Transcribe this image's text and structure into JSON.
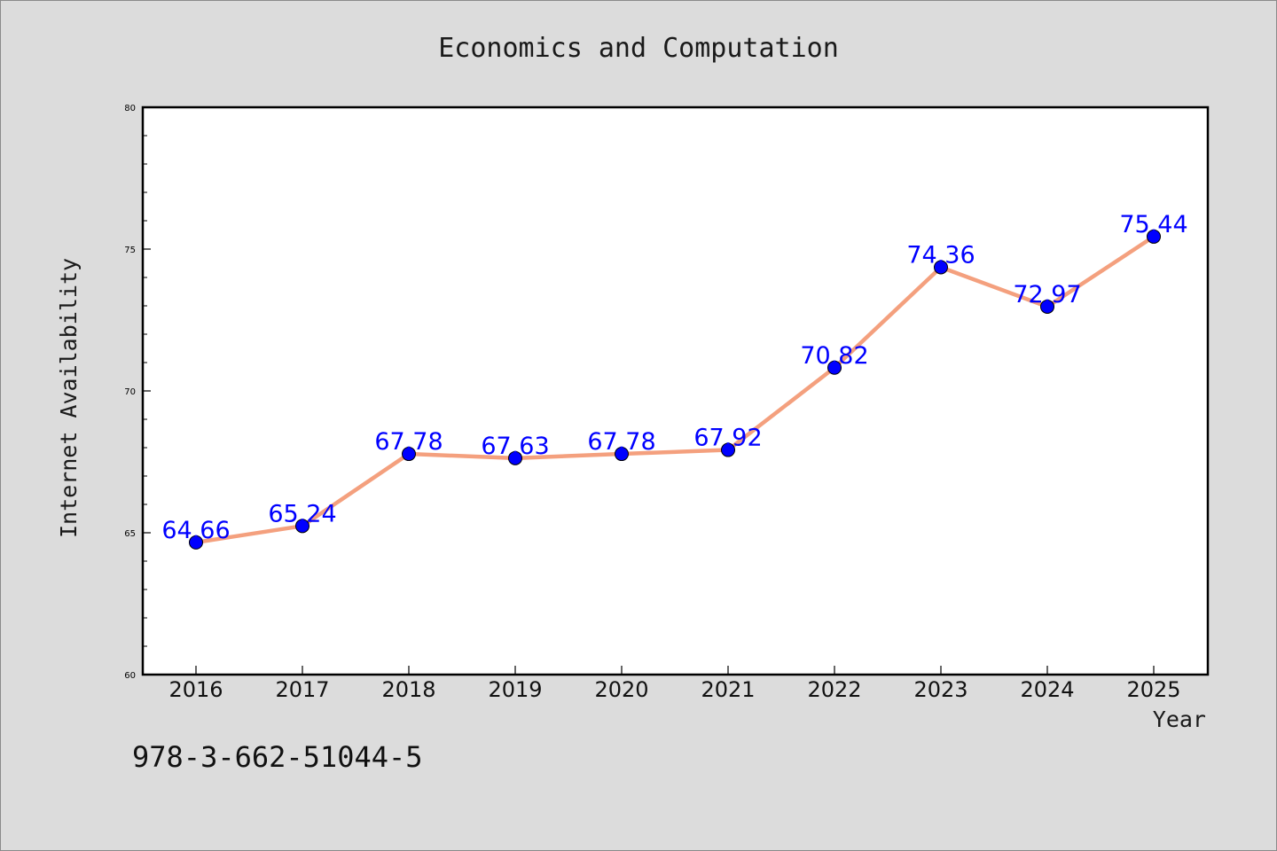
{
  "chart_data": {
    "type": "line",
    "title": "Economics and Computation",
    "xlabel": "Year",
    "ylabel": "Internet Availability",
    "x": [
      "2016",
      "2017",
      "2018",
      "2019",
      "2020",
      "2021",
      "2022",
      "2023",
      "2024",
      "2025"
    ],
    "series": [
      {
        "values": [
          64.66,
          65.24,
          67.78,
          67.63,
          67.78,
          67.92,
          70.82,
          74.36,
          72.97,
          75.44
        ],
        "line_color": "#f4a07e",
        "marker_color": "#0000ff"
      }
    ],
    "data_labels": [
      "64.66",
      "65.24",
      "67.78",
      "67.63",
      "67.78",
      "67.92",
      "70.82",
      "74.36",
      "72.97",
      "75.44"
    ],
    "yticks": [
      "60",
      "65",
      "70",
      "75",
      "80"
    ],
    "ylim": [
      60,
      80
    ],
    "grid": false,
    "legend": "none"
  },
  "annotation": "978-3-662-51044-5"
}
